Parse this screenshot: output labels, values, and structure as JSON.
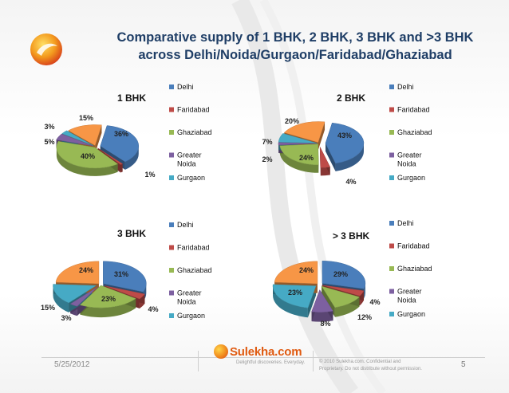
{
  "title_line1": "Comparative supply of 1 BHK, 2 BHK, 3 BHK and >3 BHK",
  "title_line2": "across Delhi/Noida/Gurgaon/Faridabad/Ghaziabad",
  "footer": {
    "date": "5/25/2012",
    "brand": "Sulekha.com",
    "tagline": "Delightful discoveries. Everyday.",
    "copyright_line1": "© 2010 Sulekha.com. Confidential and",
    "copyright_line2": "Proprietary. Do not distribute without permission.",
    "page_number": "5"
  },
  "colors": {
    "Delhi": "#4a7ebb",
    "Faridabad": "#be4b48",
    "Ghaziabad": "#98b954",
    "Greater Noida": "#7d60a0",
    "Gurgaon": "#46aac5",
    "Other": "#f79646"
  },
  "chart_data": [
    {
      "type": "pie",
      "title": "1 BHK",
      "legend": [
        "Delhi",
        "Faridabad",
        "Ghaziabad",
        "Greater Noida",
        "Gurgaon"
      ],
      "slices": [
        {
          "name": "Delhi",
          "value": 36,
          "label": "36%"
        },
        {
          "name": "Faridabad",
          "value": 1,
          "label": "1%"
        },
        {
          "name": "Ghaziabad",
          "value": 40,
          "label": "40%"
        },
        {
          "name": "Greater Noida",
          "value": 5,
          "label": "5%"
        },
        {
          "name": "Gurgaon",
          "value": 3,
          "label": "3%"
        },
        {
          "name": "Other",
          "value": 15,
          "label": "15%"
        }
      ]
    },
    {
      "type": "pie",
      "title": "2 BHK",
      "legend": [
        "Delhi",
        "Faridabad",
        "Ghaziabad",
        "Greater Noida",
        "Gurgaon"
      ],
      "slices": [
        {
          "name": "Delhi",
          "value": 43,
          "label": "43%"
        },
        {
          "name": "Faridabad",
          "value": 4,
          "label": "4%"
        },
        {
          "name": "Ghaziabad",
          "value": 24,
          "label": "24%"
        },
        {
          "name": "Greater Noida",
          "value": 2,
          "label": "2%"
        },
        {
          "name": "Gurgaon",
          "value": 7,
          "label": "7%"
        },
        {
          "name": "Other",
          "value": 20,
          "label": "20%"
        }
      ]
    },
    {
      "type": "pie",
      "title": "3 BHK",
      "legend": [
        "Delhi",
        "Faridabad",
        "Ghaziabad",
        "Greater Noida",
        "Gurgaon"
      ],
      "slices": [
        {
          "name": "Delhi",
          "value": 31,
          "label": "31%"
        },
        {
          "name": "Faridabad",
          "value": 4,
          "label": "4%"
        },
        {
          "name": "Ghaziabad",
          "value": 23,
          "label": "23%"
        },
        {
          "name": "Greater Noida",
          "value": 3,
          "label": "3%"
        },
        {
          "name": "Gurgaon",
          "value": 15,
          "label": "15%"
        },
        {
          "name": "Other",
          "value": 24,
          "label": "24%"
        }
      ]
    },
    {
      "type": "pie",
      "title": "> 3 BHK",
      "legend": [
        "Delhi",
        "Faridabad",
        "Ghaziabad",
        "Greater Noida",
        "Gurgaon"
      ],
      "slices": [
        {
          "name": "Delhi",
          "value": 29,
          "label": "29%"
        },
        {
          "name": "Faridabad",
          "value": 4,
          "label": "4%"
        },
        {
          "name": "Ghaziabad",
          "value": 12,
          "label": "12%"
        },
        {
          "name": "Greater Noida",
          "value": 8,
          "label": "8%"
        },
        {
          "name": "Gurgaon",
          "value": 23,
          "label": "23%"
        },
        {
          "name": "Other",
          "value": 24,
          "label": "24%"
        }
      ]
    }
  ]
}
